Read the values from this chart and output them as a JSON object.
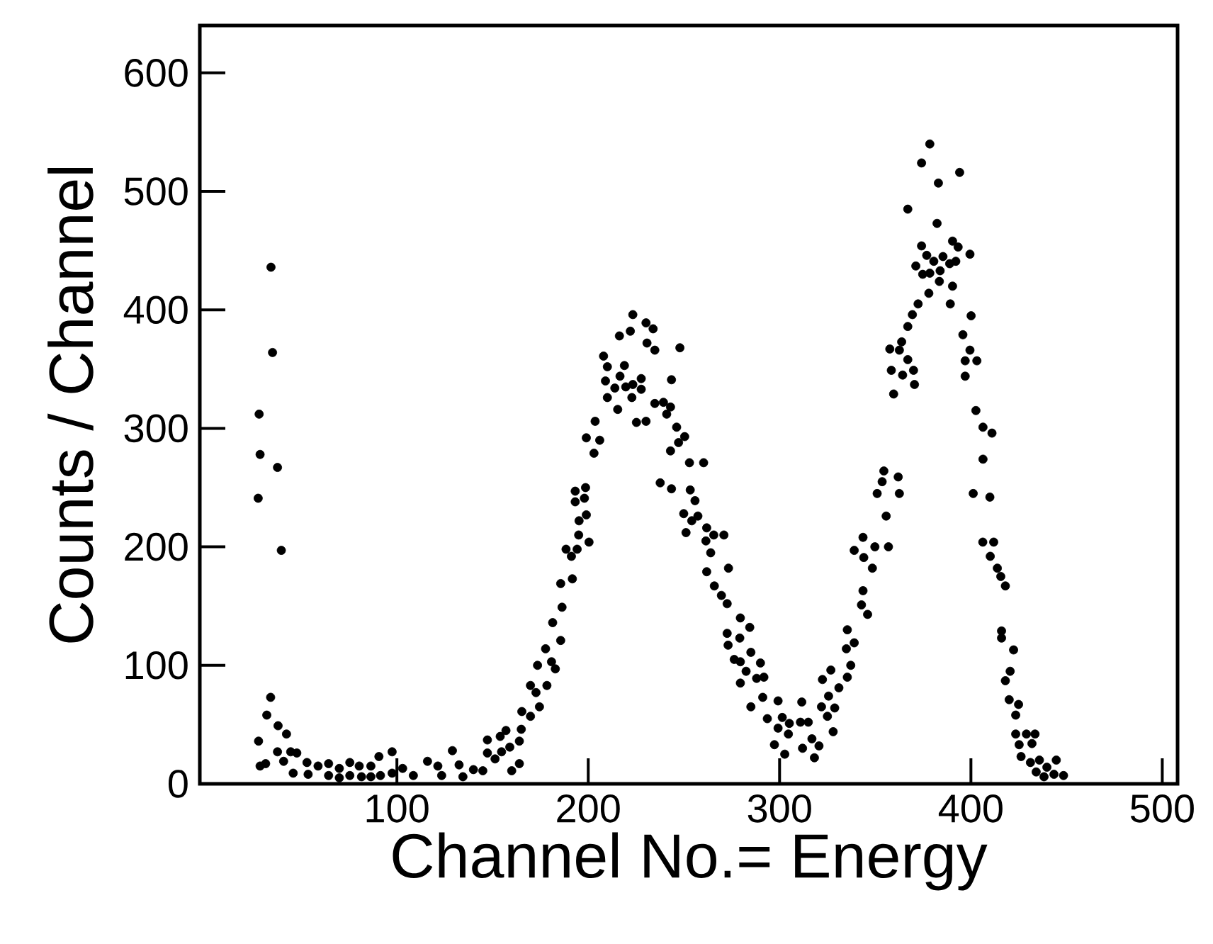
{
  "chart_data": {
    "type": "scatter",
    "xlabel": "Channel No.= Energy",
    "ylabel": "Counts / Channel",
    "color": "#000000",
    "marker": "circle",
    "xlim": [
      -3,
      508
    ],
    "ylim": [
      0,
      640
    ],
    "xticks": [
      100,
      200,
      300,
      400,
      500
    ],
    "yticks": [
      0,
      100,
      200,
      300,
      400,
      500,
      600
    ],
    "x": [
      27.5,
      27.7,
      28,
      28.5,
      28.5,
      31.4,
      32,
      34,
      34.2,
      35,
      37.6,
      37.6,
      37.9,
      39.6,
      40.8,
      42.3,
      44.5,
      45.8,
      47.7,
      53,
      53.6,
      58.8,
      64.3,
      64.3,
      69.9,
      69.9,
      75.4,
      75.4,
      80.3,
      81.5,
      86.4,
      86.4,
      90.6,
      91.4,
      97.5,
      97.5,
      103,
      108.6,
      116,
      121.4,
      123.4,
      129,
      132.5,
      134.5,
      140,
      144.9,
      147.3,
      147.3,
      151.3,
      154,
      154.7,
      157,
      159,
      160,
      164,
      164,
      165,
      165.3,
      169.8,
      169.8,
      172.7,
      173.5,
      174.5,
      177.7,
      178.4,
      180.8,
      181.4,
      182.8,
      185.6,
      185.6,
      186.3,
      188.4,
      191.2,
      191.7,
      193.2,
      193.2,
      194.2,
      195,
      195.2,
      198,
      198.6,
      199,
      199,
      200.4,
      203,
      203.6,
      206,
      208,
      209,
      210,
      210,
      213.9,
      215.4,
      216.3,
      216.6,
      218.9,
      219.6,
      222,
      222.8,
      223.3,
      223.3,
      225.2,
      227.7,
      227.7,
      230.2,
      230.2,
      230.7,
      233.9,
      234.8,
      234.8,
      237.6,
      239.3,
      241,
      243,
      243,
      243.5,
      243.5,
      246.2,
      247.2,
      247.9,
      249.9,
      250.4,
      251.1,
      252.9,
      253.3,
      254.1,
      255.8,
      257.3,
      260.3,
      261.5,
      261.9,
      261.9,
      264,
      265.6,
      265.9,
      269.6,
      270.9,
      272.6,
      272.6,
      273.1,
      273.3,
      276.3,
      279.2,
      279.5,
      279.5,
      279.5,
      282.5,
      284.4,
      285,
      285,
      288,
      290,
      291.2,
      291.8,
      293.6,
      297.3,
      299.2,
      299.2,
      301.4,
      302.7,
      304.6,
      305.1,
      310.9,
      311.6,
      312,
      315,
      316.9,
      318.2,
      320.6,
      321.9,
      322.4,
      325,
      325.6,
      326.8,
      328,
      328.8,
      331,
      334.9,
      335.4,
      335.4,
      337.2,
      339,
      339,
      342.8,
      343.6,
      343.6,
      344,
      346,
      348.5,
      349.8,
      351,
      353.6,
      354.5,
      355.7,
      356.9,
      357.6,
      358.4,
      359.6,
      362,
      362.6,
      362.6,
      363.8,
      364.3,
      367,
      367,
      367,
      369.4,
      370,
      370.5,
      371.2,
      372.4,
      374.2,
      374.2,
      374.8,
      376.9,
      378,
      378.5,
      378.5,
      380.6,
      382.3,
      383,
      383.5,
      383.9,
      385.4,
      388.9,
      389.2,
      390.4,
      390.4,
      392.1,
      393.3,
      394.1,
      395.8,
      397,
      397,
      399.5,
      399.5,
      400.1,
      401.2,
      402.6,
      403.1,
      406.2,
      406.3,
      406.3,
      409.9,
      410.1,
      411,
      411.9,
      413.8,
      415.6,
      416,
      416,
      418,
      418,
      420,
      420.5,
      422.3,
      423.4,
      423.4,
      424.9,
      425.2,
      426.2,
      429,
      431.1,
      431.9,
      433.5,
      434.1,
      435.8,
      438.2,
      439.7,
      443.4,
      444.6,
      448.4
    ],
    "values": [
      241,
      36,
      312,
      278,
      15,
      17,
      58,
      73,
      436,
      364,
      267,
      27,
      49,
      197,
      19,
      42,
      27,
      9,
      26,
      18,
      8,
      15,
      17,
      7,
      13,
      5,
      18,
      7,
      15,
      6,
      15,
      6,
      23,
      7,
      27,
      9,
      13,
      7,
      19,
      15,
      7,
      28,
      16,
      6,
      12,
      11,
      37,
      26,
      21,
      40,
      27,
      45,
      31,
      11,
      17,
      36,
      46,
      61,
      57,
      83,
      77,
      100,
      65,
      114,
      83,
      103,
      136,
      97,
      121,
      169,
      149,
      198,
      192,
      173,
      238,
      247,
      198,
      210,
      222,
      241,
      250,
      227,
      292,
      204,
      279,
      306,
      290,
      361,
      340,
      352,
      326,
      334,
      316,
      378,
      344,
      353,
      335,
      382,
      326,
      396,
      337,
      305,
      342,
      333,
      389,
      306,
      372,
      384,
      366,
      321,
      254,
      322,
      312,
      318,
      281,
      341,
      249,
      301,
      288,
      368,
      228,
      293,
      212,
      271,
      248,
      222,
      239,
      226,
      271,
      205,
      216,
      179,
      195,
      210,
      167,
      159,
      210,
      152,
      127,
      117,
      182,
      105,
      123,
      140,
      103,
      85,
      95,
      132,
      111,
      65,
      89,
      102,
      73,
      90,
      55,
      33,
      70,
      47,
      56,
      25,
      42,
      51,
      52,
      69,
      30,
      52,
      38,
      22,
      32,
      65,
      88,
      57,
      74,
      96,
      44,
      64,
      81,
      114,
      130,
      90,
      100,
      119,
      197,
      151,
      163,
      208,
      191,
      143,
      182,
      200,
      245,
      255,
      264,
      226,
      200,
      367,
      349,
      329,
      259,
      245,
      366,
      373,
      345,
      358,
      386,
      485,
      396,
      349,
      337,
      437,
      405,
      454,
      524,
      430,
      446,
      414,
      431,
      540,
      441,
      473,
      507,
      424,
      433,
      445,
      439,
      405,
      420,
      458,
      441,
      453,
      516,
      379,
      357,
      344,
      447,
      366,
      395,
      245,
      315,
      357,
      204,
      301,
      274,
      242,
      192,
      296,
      204,
      182,
      175,
      129,
      123,
      167,
      87,
      71,
      95,
      113,
      58,
      42,
      67,
      33,
      23,
      42,
      18,
      34,
      42,
      10,
      20,
      6,
      14,
      8,
      20,
      7
    ]
  }
}
